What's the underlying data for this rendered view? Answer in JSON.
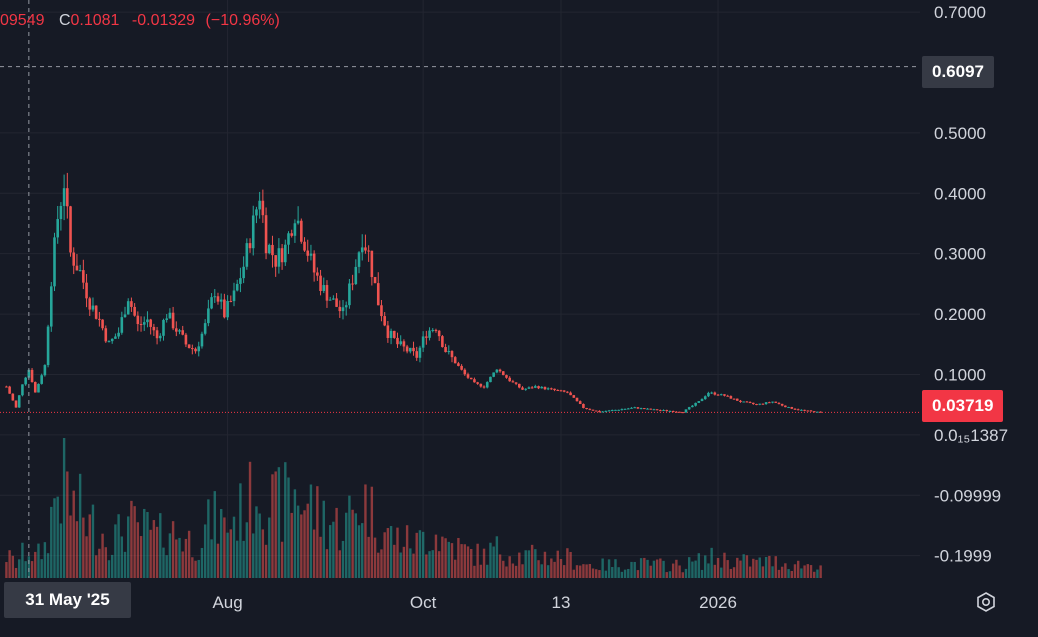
{
  "legend": {
    "prefix_value": "09549",
    "close_label": "C",
    "close_value": "0.1081",
    "change": "-0.01329",
    "change_pct": "(−10.96%)"
  },
  "crosshair_price": "0.6097",
  "last_price": "0.03719",
  "crosshair_date": "31 May '25",
  "colors": {
    "background": "#161a25",
    "up": "#26a69a",
    "down": "#ef5350",
    "text": "#d1d4dc",
    "last_badge": "#f23645",
    "crosshair_badge": "#363a45"
  },
  "settings_icon": "settings-gear-icon",
  "chart_data": {
    "type": "candlestick",
    "price_axis": {
      "ticks": [
        "0.7000",
        "0.5000",
        "0.4000",
        "0.3000",
        "0.2000",
        "0.1000",
        "0.0₁₅1387",
        "-0.09999",
        "-0.1999"
      ],
      "tick_values": [
        0.7,
        0.5,
        0.4,
        0.3,
        0.2,
        0.1,
        0.0,
        -0.1,
        -0.2
      ],
      "range": [
        -0.237,
        0.72
      ]
    },
    "time_axis": {
      "ticks": [
        "Aug",
        "Oct",
        "13",
        "2026"
      ],
      "tick_dates": [
        "2025-08-01",
        "2025-10-01",
        "2025-11-13",
        "2026-01-01"
      ],
      "range": [
        "2025-05-22",
        "2026-03-05"
      ]
    },
    "grid": true,
    "close_path": [
      [
        "2025-05-24",
        0.08
      ],
      [
        "2025-05-27",
        0.045
      ],
      [
        "2025-05-29",
        0.085
      ],
      [
        "2025-05-31",
        0.108
      ],
      [
        "2025-06-02",
        0.07
      ],
      [
        "2025-06-05",
        0.115
      ],
      [
        "2025-06-07",
        0.26
      ],
      [
        "2025-06-09",
        0.36
      ],
      [
        "2025-06-11",
        0.42
      ],
      [
        "2025-06-13",
        0.3
      ],
      [
        "2025-06-16",
        0.27
      ],
      [
        "2025-06-19",
        0.22
      ],
      [
        "2025-06-22",
        0.19
      ],
      [
        "2025-06-25",
        0.15
      ],
      [
        "2025-06-28",
        0.17
      ],
      [
        "2025-07-01",
        0.23
      ],
      [
        "2025-07-04",
        0.18
      ],
      [
        "2025-07-07",
        0.19
      ],
      [
        "2025-07-10",
        0.16
      ],
      [
        "2025-07-13",
        0.2
      ],
      [
        "2025-07-16",
        0.175
      ],
      [
        "2025-07-19",
        0.15
      ],
      [
        "2025-07-22",
        0.14
      ],
      [
        "2025-07-25",
        0.18
      ],
      [
        "2025-07-28",
        0.24
      ],
      [
        "2025-07-31",
        0.2
      ],
      [
        "2025-08-03",
        0.23
      ],
      [
        "2025-08-06",
        0.28
      ],
      [
        "2025-08-09",
        0.35
      ],
      [
        "2025-08-11",
        0.4
      ],
      [
        "2025-08-13",
        0.32
      ],
      [
        "2025-08-16",
        0.29
      ],
      [
        "2025-08-19",
        0.31
      ],
      [
        "2025-08-22",
        0.37
      ],
      [
        "2025-08-25",
        0.32
      ],
      [
        "2025-08-28",
        0.27
      ],
      [
        "2025-08-31",
        0.24
      ],
      [
        "2025-09-03",
        0.22
      ],
      [
        "2025-09-06",
        0.2
      ],
      [
        "2025-09-09",
        0.26
      ],
      [
        "2025-09-12",
        0.33
      ],
      [
        "2025-09-14",
        0.3
      ],
      [
        "2025-09-17",
        0.22
      ],
      [
        "2025-09-20",
        0.17
      ],
      [
        "2025-09-23",
        0.15
      ],
      [
        "2025-09-26",
        0.14
      ],
      [
        "2025-09-29",
        0.13
      ],
      [
        "2025-10-02",
        0.17
      ],
      [
        "2025-10-05",
        0.18
      ],
      [
        "2025-10-08",
        0.14
      ],
      [
        "2025-10-11",
        0.12
      ],
      [
        "2025-10-14",
        0.1
      ],
      [
        "2025-10-17",
        0.085
      ],
      [
        "2025-10-20",
        0.08
      ],
      [
        "2025-10-24",
        0.11
      ],
      [
        "2025-10-28",
        0.09
      ],
      [
        "2025-11-01",
        0.075
      ],
      [
        "2025-11-05",
        0.08
      ],
      [
        "2025-11-10",
        0.075
      ],
      [
        "2025-11-15",
        0.07
      ],
      [
        "2025-11-20",
        0.045
      ],
      [
        "2025-11-25",
        0.038
      ],
      [
        "2025-12-01",
        0.042
      ],
      [
        "2025-12-06",
        0.045
      ],
      [
        "2025-12-11",
        0.042
      ],
      [
        "2025-12-16",
        0.04
      ],
      [
        "2025-12-21",
        0.038
      ],
      [
        "2025-12-26",
        0.055
      ],
      [
        "2025-12-29",
        0.07
      ],
      [
        "2026-01-03",
        0.065
      ],
      [
        "2026-01-08",
        0.055
      ],
      [
        "2026-01-13",
        0.05
      ],
      [
        "2026-01-18",
        0.055
      ],
      [
        "2026-01-23",
        0.045
      ],
      [
        "2026-01-28",
        0.04
      ],
      [
        "2026-02-02",
        0.037
      ]
    ],
    "volume_scale": "relative"
  }
}
